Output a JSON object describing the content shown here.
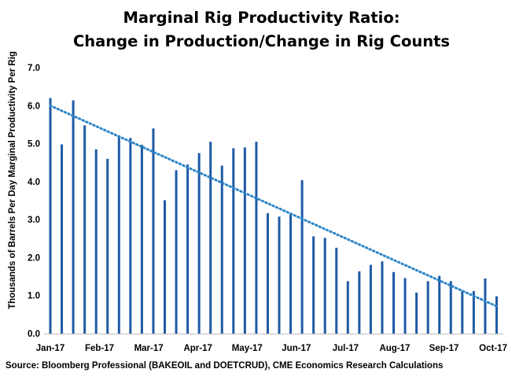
{
  "chart_data": {
    "type": "bar",
    "title": [
      "Marginal Rig Productivity Ratio:",
      "Change in Production/Change in Rig Counts"
    ],
    "ylabel": "Thousands of Barrels Per Day Marginal Productivity Per Rig",
    "ylim": [
      0,
      7
    ],
    "yticks": [
      "0.0",
      "1.0",
      "2.0",
      "3.0",
      "4.0",
      "5.0",
      "6.0",
      "7.0"
    ],
    "xticks": [
      "Jan-17",
      "Feb-17",
      "Mar-17",
      "Apr-17",
      "May-17",
      "Jun-17",
      "Jul-17",
      "Aug-17",
      "Sep-17",
      "Oct-17"
    ],
    "x_range": [
      0,
      39
    ],
    "x_ticks_every": 4.3,
    "values": [
      6.2,
      4.98,
      6.14,
      5.48,
      4.85,
      4.6,
      5.22,
      5.15,
      4.97,
      5.4,
      3.51,
      4.3,
      4.45,
      4.75,
      5.05,
      4.42,
      4.88,
      4.9,
      5.05,
      3.17,
      3.08,
      3.14,
      4.04,
      2.56,
      2.52,
      2.26,
      1.38,
      1.64,
      1.81,
      1.9,
      1.62,
      1.46,
      1.08,
      1.38,
      1.52,
      1.38,
      1.12,
      1.12,
      1.45,
      0.98
    ],
    "trendline": {
      "style": "dotted",
      "start": 6.0,
      "end": 0.72
    },
    "bar_color": "#1f5aa6",
    "trend_color": "#2e86c8",
    "grid": false,
    "source": "Source: Bloomberg Professional  (BAKEOIL and DOETCRUD), CME Economics Research Calculations"
  }
}
